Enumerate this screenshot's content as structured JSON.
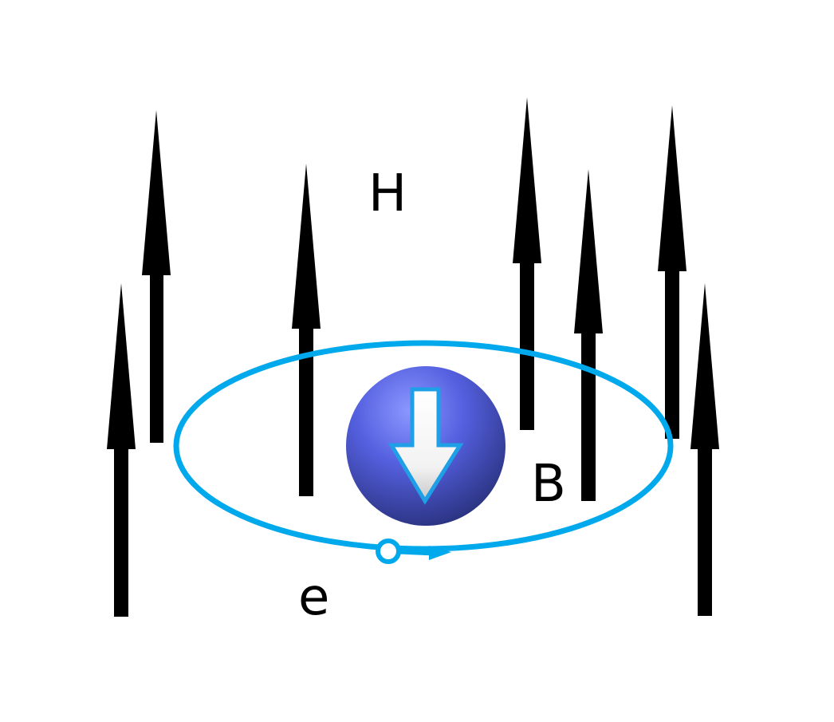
{
  "labels": {
    "field": "H",
    "induced": "B",
    "electron": "e"
  },
  "colors": {
    "field_arrow": "#000000",
    "orbit": "#00a8ec",
    "sphere_light": "#7a86ff",
    "sphere_dark": "#303a8c",
    "inner_arrow_fill": "#ffffff",
    "inner_arrow_stroke": "#1e9fe6"
  },
  "icons": {
    "field_arrows": "up-arrow-icon",
    "induced_moment": "down-arrow-icon",
    "electron_marker": "circle-icon"
  }
}
